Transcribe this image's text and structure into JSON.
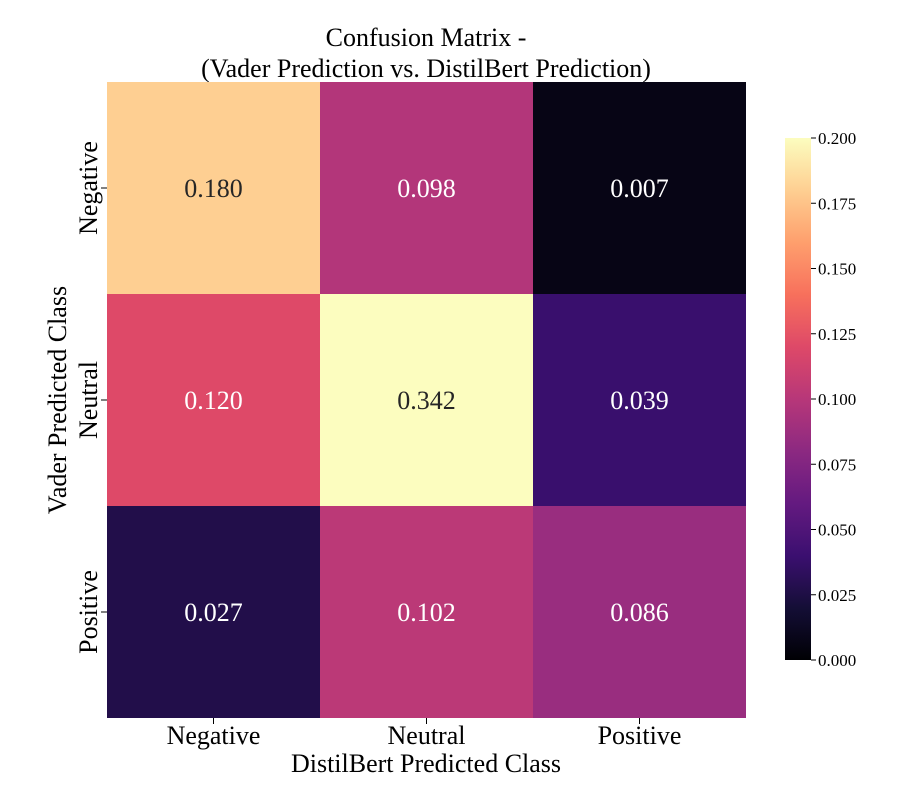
{
  "chart_data": {
    "type": "heatmap",
    "title": "Confusion Matrix -",
    "subtitle": "(Vader Prediction vs. DistilBert Prediction)",
    "xlabel": "DistilBert Predicted Class",
    "ylabel": "Vader Predicted Class",
    "x_categories": [
      "Negative",
      "Neutral",
      "Positive"
    ],
    "y_categories": [
      "Negative",
      "Neutral",
      "Positive"
    ],
    "values": [
      [
        0.18,
        0.098,
        0.007
      ],
      [
        0.12,
        0.342,
        0.039
      ],
      [
        0.027,
        0.102,
        0.086
      ]
    ],
    "cell_labels": [
      [
        "0.180",
        "0.098",
        "0.007"
      ],
      [
        "0.120",
        "0.342",
        "0.039"
      ],
      [
        "0.027",
        "0.102",
        "0.086"
      ]
    ],
    "colormap": "magma",
    "colorbar": {
      "range": [
        0.0,
        0.2
      ],
      "ticks": [
        "0.000",
        "0.025",
        "0.050",
        "0.075",
        "0.100",
        "0.125",
        "0.150",
        "0.175",
        "0.200"
      ]
    }
  }
}
